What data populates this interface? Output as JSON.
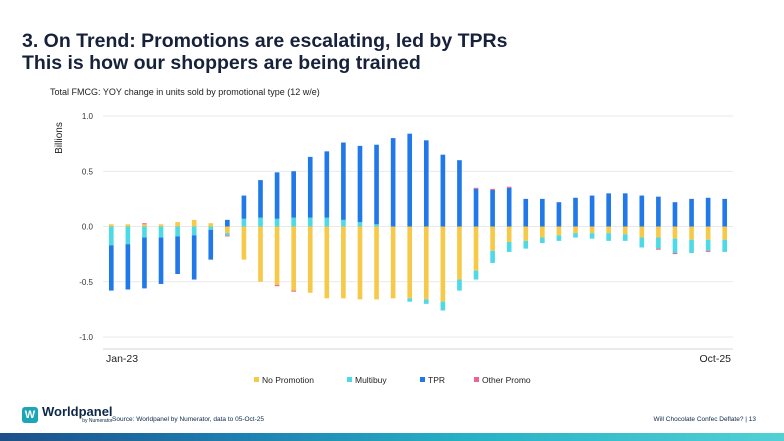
{
  "title_line1": "3. On Trend: Promotions are escalating, led by TPRs",
  "title_line2": "This is how our shoppers are being trained",
  "chart_data": {
    "type": "bar",
    "stacked": true,
    "title": "Total FMCG: YOY change in units sold by promotional type (12 w/e)",
    "ylabel": "Billions",
    "ylim": [
      -1.0,
      1.0
    ],
    "yticks": [
      "1.0",
      "0.5",
      "0.0",
      "-0.5",
      "-1.0"
    ],
    "ytick_values": [
      1.0,
      0.5,
      0.0,
      -0.5,
      -1.0
    ],
    "x_start_label": "Jan-23",
    "x_end_label": "Oct-25",
    "legend_position": "bottom",
    "colors": {
      "No Promotion": "#f7c948",
      "Multibuy": "#4dd9e6",
      "TPR": "#2178e8",
      "Other Promo": "#f06292"
    },
    "series": [
      {
        "name": "No Promotion",
        "values": [
          0.02,
          0.02,
          0.02,
          0.02,
          0.04,
          0.06,
          0.03,
          -0.06,
          -0.3,
          -0.5,
          -0.53,
          -0.58,
          -0.6,
          -0.65,
          -0.65,
          -0.66,
          -0.66,
          -0.65,
          -0.65,
          -0.66,
          -0.68,
          -0.48,
          -0.4,
          -0.22,
          -0.14,
          -0.13,
          -0.1,
          -0.08,
          -0.06,
          -0.06,
          -0.06,
          -0.07,
          -0.1,
          -0.1,
          -0.11,
          -0.12,
          -0.12,
          -0.12
        ]
      },
      {
        "name": "Multibuy",
        "values": [
          -0.17,
          -0.16,
          -0.1,
          -0.1,
          -0.09,
          -0.08,
          -0.03,
          -0.02,
          0.07,
          0.08,
          0.07,
          0.08,
          0.08,
          0.08,
          0.06,
          0.04,
          0.02,
          0.0,
          -0.03,
          -0.04,
          -0.08,
          -0.1,
          -0.08,
          -0.11,
          -0.09,
          -0.07,
          -0.05,
          -0.05,
          -0.04,
          -0.05,
          -0.07,
          -0.06,
          -0.09,
          -0.1,
          -0.13,
          -0.12,
          -0.1,
          -0.11
        ]
      },
      {
        "name": "TPR",
        "values": [
          -0.41,
          -0.41,
          -0.46,
          -0.42,
          -0.34,
          -0.4,
          -0.27,
          0.06,
          0.21,
          0.34,
          0.42,
          0.42,
          0.55,
          0.6,
          0.7,
          0.69,
          0.72,
          0.8,
          0.84,
          0.78,
          0.65,
          0.6,
          0.34,
          0.33,
          0.35,
          0.25,
          0.25,
          0.22,
          0.26,
          0.28,
          0.3,
          0.3,
          0.28,
          0.27,
          0.22,
          0.25,
          0.26,
          0.25
        ]
      },
      {
        "name": "Other Promo",
        "values": [
          0.0,
          0.0,
          0.01,
          0.0,
          0.0,
          0.0,
          0.0,
          -0.01,
          0.0,
          0.0,
          -0.01,
          -0.01,
          0.0,
          0.0,
          0.0,
          0.0,
          0.0,
          0.0,
          0.0,
          0.0,
          0.0,
          0.0,
          0.01,
          0.01,
          0.01,
          0.0,
          0.0,
          0.0,
          0.0,
          0.0,
          0.0,
          0.0,
          0.0,
          -0.01,
          -0.01,
          0.0,
          -0.01,
          0.0
        ]
      }
    ]
  },
  "legend_items": [
    "No Promotion",
    "Multibuy",
    "TPR",
    "Other Promo"
  ],
  "footer": {
    "logo_name": "Worldpanel",
    "logo_sub": "by Numerator",
    "source": "Source: Worldpanel by Numerator, data to 05-Oct-25",
    "page_ref": "Will Chocolate Confec Deflate? | 13"
  }
}
